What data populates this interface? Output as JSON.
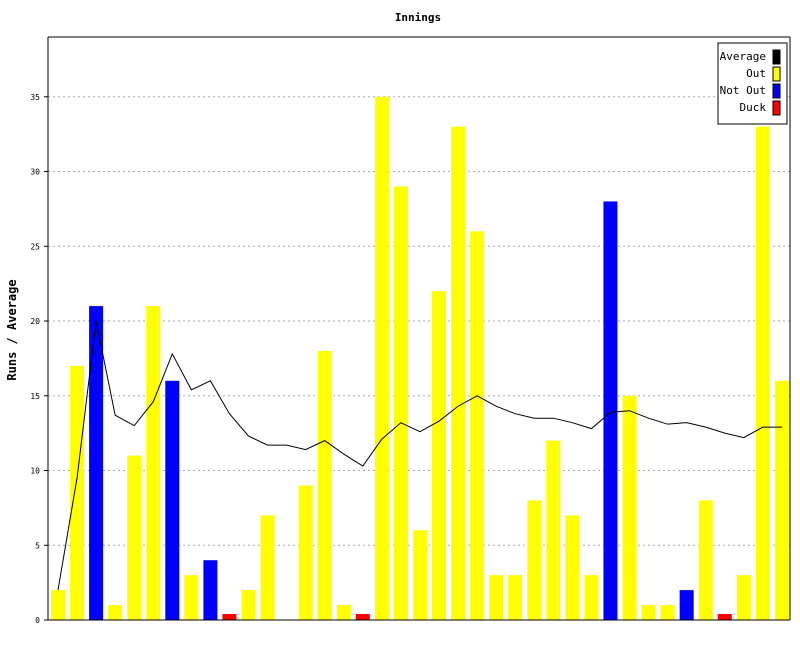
{
  "chart_data": {
    "type": "bar",
    "title": "Innings",
    "xlabel": "",
    "ylabel": "Runs / Average",
    "ylim": [
      0,
      39
    ],
    "yticks": [
      0,
      5,
      10,
      15,
      20,
      25,
      30,
      35
    ],
    "grid": true,
    "legend_position": "top-right",
    "legend": [
      {
        "name": "Average",
        "color": "#000000"
      },
      {
        "name": "Out",
        "color": "#ffff00"
      },
      {
        "name": "Not Out",
        "color": "#0000ff"
      },
      {
        "name": "Duck",
        "color": "#ff0000"
      }
    ],
    "innings": [
      {
        "runs": 2,
        "status": "Out"
      },
      {
        "runs": 17,
        "status": "Out"
      },
      {
        "runs": 21,
        "status": "Not Out"
      },
      {
        "runs": 1,
        "status": "Out"
      },
      {
        "runs": 11,
        "status": "Out"
      },
      {
        "runs": 21,
        "status": "Out"
      },
      {
        "runs": 16,
        "status": "Not Out"
      },
      {
        "runs": 3,
        "status": "Out"
      },
      {
        "runs": 4,
        "status": "Not Out"
      },
      {
        "runs": 0,
        "status": "Duck"
      },
      {
        "runs": 2,
        "status": "Out"
      },
      {
        "runs": 7,
        "status": "Out"
      },
      {
        "runs": 0,
        "status": "Out"
      },
      {
        "runs": 9,
        "status": "Out"
      },
      {
        "runs": 18,
        "status": "Out"
      },
      {
        "runs": 1,
        "status": "Out"
      },
      {
        "runs": 0,
        "status": "Duck"
      },
      {
        "runs": 35,
        "status": "Out"
      },
      {
        "runs": 29,
        "status": "Out"
      },
      {
        "runs": 6,
        "status": "Out"
      },
      {
        "runs": 22,
        "status": "Out"
      },
      {
        "runs": 33,
        "status": "Out"
      },
      {
        "runs": 26,
        "status": "Out"
      },
      {
        "runs": 3,
        "status": "Out"
      },
      {
        "runs": 3,
        "status": "Out"
      },
      {
        "runs": 8,
        "status": "Out"
      },
      {
        "runs": 12,
        "status": "Out"
      },
      {
        "runs": 7,
        "status": "Out"
      },
      {
        "runs": 3,
        "status": "Out"
      },
      {
        "runs": 28,
        "status": "Not Out"
      },
      {
        "runs": 15,
        "status": "Out"
      },
      {
        "runs": 1,
        "status": "Out"
      },
      {
        "runs": 1,
        "status": "Out"
      },
      {
        "runs": 2,
        "status": "Not Out"
      },
      {
        "runs": 8,
        "status": "Out"
      },
      {
        "runs": 0,
        "status": "Duck"
      },
      {
        "runs": 3,
        "status": "Out"
      },
      {
        "runs": 33,
        "status": "Out"
      },
      {
        "runs": 16,
        "status": "Out"
      }
    ],
    "average": [
      2,
      9.5,
      20,
      13.7,
      13,
      14.6,
      17.8,
      15.4,
      16,
      13.8,
      12.3,
      11.7,
      11.7,
      11.4,
      12,
      11.1,
      10.3,
      12.1,
      13.2,
      12.6,
      13.3,
      14.3,
      15,
      14.3,
      13.8,
      13.5,
      13.5,
      13.2,
      12.8,
      13.9,
      14,
      13.5,
      13.1,
      13.2,
      12.9,
      12.5,
      12.2,
      12.9,
      12.9
    ]
  }
}
